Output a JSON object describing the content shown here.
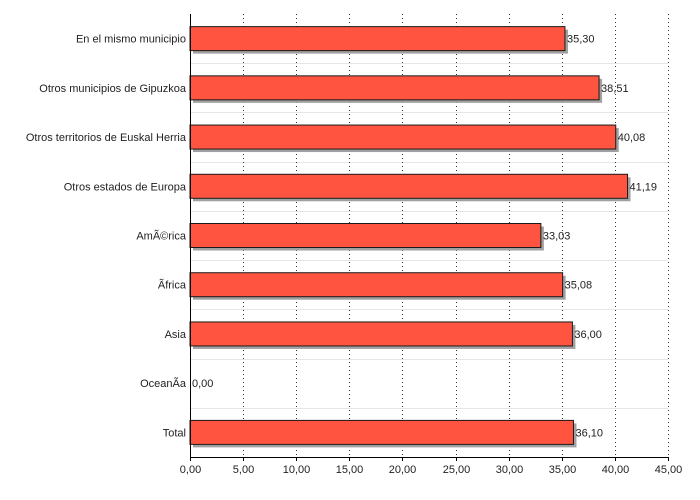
{
  "chart_data": {
    "type": "bar",
    "orientation": "horizontal",
    "categories": [
      "En el mismo municipio",
      "Otros municipios de Gipuzkoa",
      "Otros territorios de Euskal Herria",
      "Otros estados de Europa",
      "AmÃ©rica",
      "Ãfrica",
      "Asia",
      "OceanÃ­a",
      "Total"
    ],
    "values": [
      35.3,
      38.51,
      40.08,
      41.19,
      33.03,
      35.08,
      36.0,
      0.0,
      36.1
    ],
    "value_labels": [
      "35,30",
      "38,51",
      "40,08",
      "41,19",
      "33,03",
      "35,08",
      "36,00",
      "0,00",
      "36,10"
    ],
    "xlim": [
      0,
      45
    ],
    "ticks": [
      0,
      5,
      10,
      15,
      20,
      25,
      30,
      35,
      40,
      45
    ],
    "tick_labels": [
      "0,00",
      "5,00",
      "10,00",
      "15,00",
      "20,00",
      "25,00",
      "30,00",
      "35,00",
      "40,00",
      "45,00"
    ],
    "grid": "vertical dotted",
    "colors": {
      "bar_fill": "#ff5540",
      "bar_stroke": "#1a1a1a",
      "bar_shadow": "#a0a0a0",
      "grid": "#333333",
      "row_separator": "#e6e6e6"
    }
  }
}
